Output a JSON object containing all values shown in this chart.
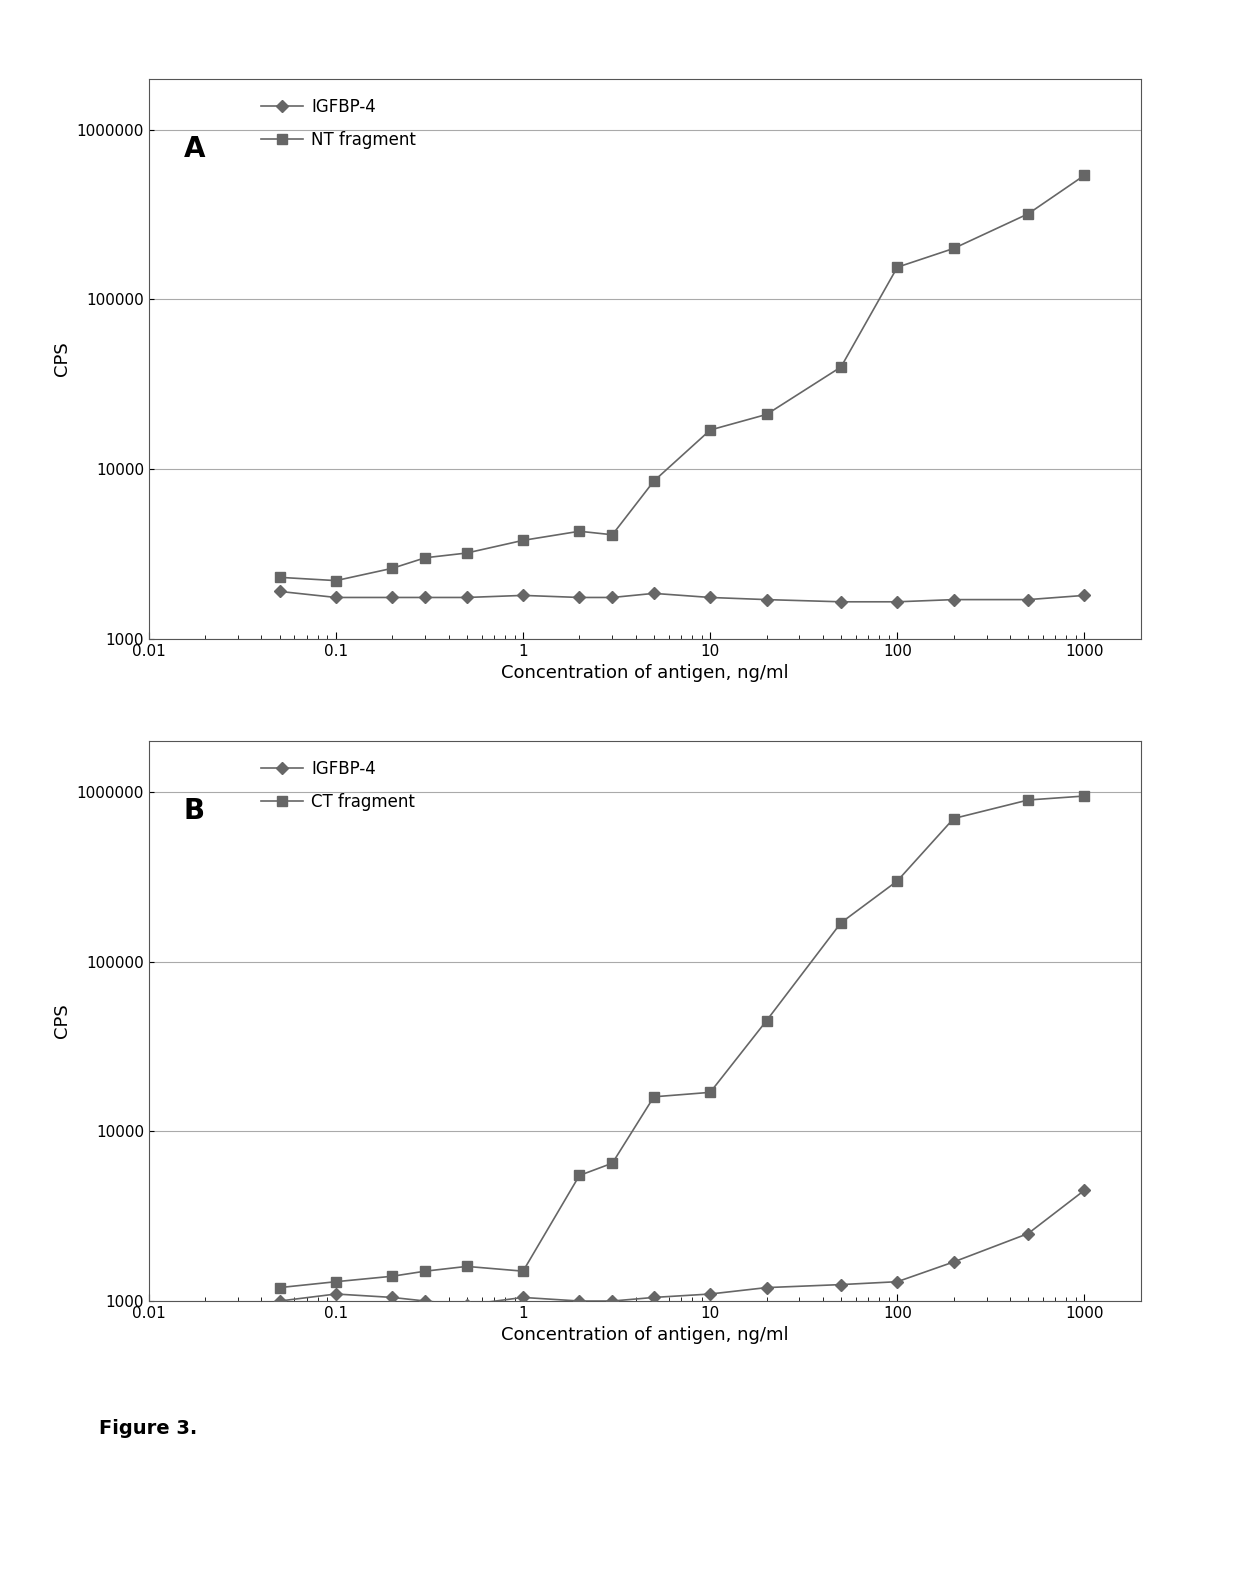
{
  "panel_A": {
    "label": "A",
    "igfbp4_x": [
      0.05,
      0.1,
      0.2,
      0.3,
      0.5,
      1.0,
      2.0,
      3.0,
      5.0,
      10.0,
      20.0,
      50.0,
      100.0,
      200.0,
      500.0,
      1000.0
    ],
    "igfbp4_y": [
      1900,
      1750,
      1750,
      1750,
      1750,
      1800,
      1750,
      1750,
      1850,
      1750,
      1700,
      1650,
      1650,
      1700,
      1700,
      1800
    ],
    "nt_x": [
      0.05,
      0.1,
      0.2,
      0.3,
      0.5,
      1.0,
      2.0,
      3.0,
      5.0,
      10.0,
      20.0,
      50.0,
      100.0,
      200.0,
      500.0,
      1000.0
    ],
    "nt_y": [
      2300,
      2200,
      2600,
      3000,
      3200,
      3800,
      4300,
      4100,
      8500,
      17000,
      21000,
      40000,
      155000,
      200000,
      320000,
      540000
    ],
    "igfbp4_label": "IGFBP-4",
    "nt_label": "NT fragment",
    "xlabel": "Concentration of antigen, ng/ml",
    "ylabel": "CPS",
    "xlim": [
      0.01,
      2000
    ],
    "ylim": [
      1000,
      2000000
    ]
  },
  "panel_B": {
    "label": "B",
    "igfbp4_x": [
      0.05,
      0.1,
      0.2,
      0.3,
      0.5,
      1.0,
      2.0,
      3.0,
      5.0,
      10.0,
      20.0,
      50.0,
      100.0,
      200.0,
      500.0,
      1000.0
    ],
    "igfbp4_y": [
      1000,
      1100,
      1050,
      1000,
      950,
      1050,
      1000,
      1000,
      1050,
      1100,
      1200,
      1250,
      1300,
      1700,
      2500,
      4500
    ],
    "ct_x": [
      0.05,
      0.1,
      0.2,
      0.3,
      0.5,
      1.0,
      2.0,
      3.0,
      5.0,
      10.0,
      20.0,
      50.0,
      100.0,
      200.0,
      500.0,
      1000.0
    ],
    "ct_y": [
      1200,
      1300,
      1400,
      1500,
      1600,
      1500,
      5500,
      6500,
      16000,
      17000,
      45000,
      170000,
      300000,
      700000,
      900000,
      950000
    ],
    "igfbp4_label": "IGFBP-4",
    "ct_label": "CT fragment",
    "xlabel": "Concentration of antigen, ng/ml",
    "ylabel": "CPS",
    "xlim": [
      0.01,
      2000
    ],
    "ylim": [
      1000,
      2000000
    ]
  },
  "line_color": "#666666",
  "figure_caption": "Figure 3.",
  "bg_color": "#ffffff",
  "grid_color": "#aaaaaa"
}
